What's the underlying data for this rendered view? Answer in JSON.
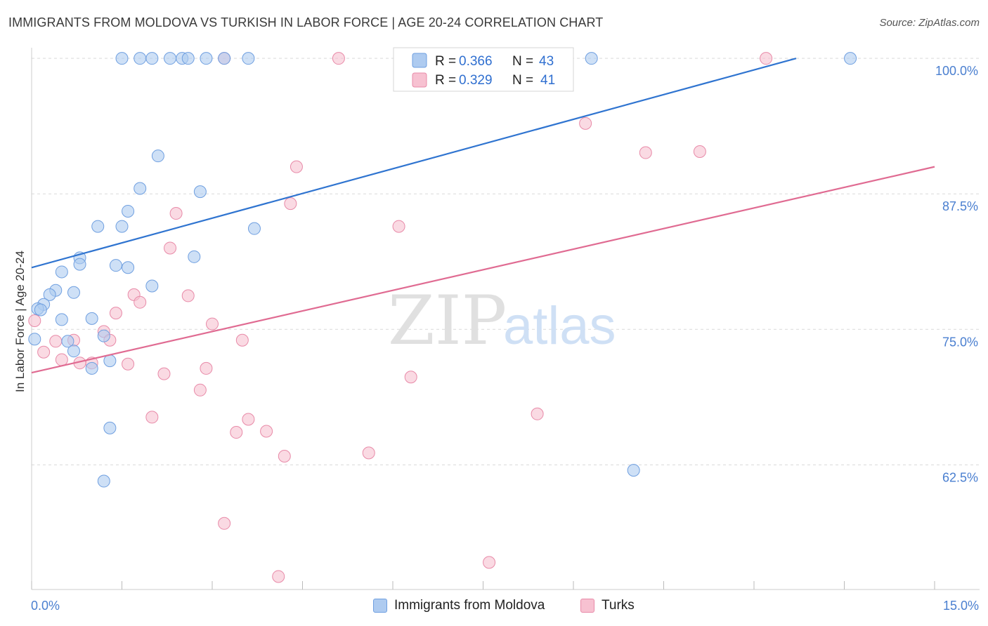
{
  "title": "IMMIGRANTS FROM MOLDOVA VS TURKISH IN LABOR FORCE | AGE 20-24 CORRELATION CHART",
  "source": "Source: ZipAtlas.com",
  "watermark": {
    "zip": "ZIP",
    "atlas": "atlas"
  },
  "colors": {
    "blue_fill": "#aecbf0",
    "blue_stroke": "#6f9fe0",
    "blue_line": "#2f74d0",
    "pink_fill": "#f7c1d1",
    "pink_stroke": "#e88aa8",
    "pink_line": "#e06b92",
    "grid": "#d9d9d9",
    "axis_label": "#4a7fd0"
  },
  "legend": {
    "rows": [
      {
        "r_label": "R =",
        "r_value": "0.366",
        "n_label": "N =",
        "n_value": "43"
      },
      {
        "r_label": "R =",
        "r_value": "0.329",
        "n_label": "N =",
        "n_value": "41"
      }
    ]
  },
  "bottom_legend": {
    "series1": "Immigrants from Moldova",
    "series2": "Turks"
  },
  "chart_data": {
    "type": "scatter",
    "ylabel": "In Labor Force | Age 20-24",
    "x_tick_labels": [
      "0.0%",
      "15.0%"
    ],
    "y_tick_labels": [
      "100.0%",
      "87.5%",
      "75.0%",
      "62.5%"
    ],
    "y_ticks": [
      100,
      87.5,
      75,
      62.5
    ],
    "xlim": [
      0,
      15
    ],
    "ylim": [
      51,
      101.5
    ],
    "grid": true,
    "series": [
      {
        "name": "Immigrants from Moldova",
        "points": [
          [
            1.5,
            100
          ],
          [
            1.8,
            100
          ],
          [
            2.0,
            100
          ],
          [
            2.3,
            100
          ],
          [
            2.5,
            100
          ],
          [
            2.6,
            100
          ],
          [
            2.9,
            100
          ],
          [
            3.2,
            100
          ],
          [
            3.6,
            100
          ],
          [
            8.0,
            100
          ],
          [
            9.3,
            100
          ],
          [
            13.6,
            100
          ],
          [
            2.1,
            91.0
          ],
          [
            1.8,
            88.0
          ],
          [
            2.8,
            87.7
          ],
          [
            1.6,
            85.9
          ],
          [
            1.1,
            84.5
          ],
          [
            1.5,
            84.5
          ],
          [
            3.7,
            84.3
          ],
          [
            0.8,
            81.6
          ],
          [
            0.8,
            81.0
          ],
          [
            1.4,
            80.9
          ],
          [
            1.6,
            80.7
          ],
          [
            2.7,
            81.7
          ],
          [
            0.5,
            80.3
          ],
          [
            2.0,
            79.0
          ],
          [
            0.4,
            78.6
          ],
          [
            0.3,
            78.2
          ],
          [
            0.7,
            78.4
          ],
          [
            0.2,
            77.3
          ],
          [
            0.1,
            76.9
          ],
          [
            0.5,
            75.9
          ],
          [
            1.0,
            76.0
          ],
          [
            0.05,
            74.1
          ],
          [
            0.6,
            73.9
          ],
          [
            1.2,
            74.4
          ],
          [
            0.7,
            73.0
          ],
          [
            1.3,
            72.1
          ],
          [
            1.0,
            71.4
          ],
          [
            1.3,
            65.9
          ],
          [
            1.2,
            61.0
          ],
          [
            10.0,
            62.0
          ],
          [
            0.15,
            76.8
          ]
        ]
      },
      {
        "name": "Turks",
        "points": [
          [
            3.2,
            100
          ],
          [
            5.1,
            100
          ],
          [
            12.2,
            100
          ],
          [
            9.2,
            94.0
          ],
          [
            10.2,
            91.3
          ],
          [
            11.1,
            91.4
          ],
          [
            4.4,
            90.0
          ],
          [
            2.4,
            85.7
          ],
          [
            4.3,
            86.6
          ],
          [
            6.1,
            84.5
          ],
          [
            2.3,
            82.5
          ],
          [
            1.7,
            78.2
          ],
          [
            1.8,
            77.5
          ],
          [
            2.6,
            78.1
          ],
          [
            1.4,
            76.5
          ],
          [
            3.0,
            75.5
          ],
          [
            1.2,
            74.8
          ],
          [
            0.4,
            73.9
          ],
          [
            0.7,
            74.0
          ],
          [
            1.3,
            74.0
          ],
          [
            3.5,
            74.0
          ],
          [
            0.05,
            75.8
          ],
          [
            0.2,
            72.9
          ],
          [
            0.5,
            72.2
          ],
          [
            0.8,
            71.9
          ],
          [
            1.0,
            71.9
          ],
          [
            1.6,
            71.8
          ],
          [
            2.2,
            70.9
          ],
          [
            2.9,
            71.4
          ],
          [
            2.8,
            69.4
          ],
          [
            6.3,
            70.6
          ],
          [
            2.0,
            66.9
          ],
          [
            3.6,
            66.7
          ],
          [
            3.4,
            65.5
          ],
          [
            3.9,
            65.6
          ],
          [
            8.4,
            67.2
          ],
          [
            4.2,
            63.3
          ],
          [
            5.6,
            63.6
          ],
          [
            3.2,
            57.1
          ],
          [
            7.6,
            53.5
          ],
          [
            4.1,
            52.2
          ]
        ]
      }
    ],
    "trendlines": [
      {
        "name": "Immigrants from Moldova",
        "x": [
          0,
          12.7
        ],
        "y": [
          80.7,
          100
        ]
      },
      {
        "name": "Turks",
        "x": [
          0,
          15
        ],
        "y": [
          71.0,
          90.0
        ]
      }
    ]
  }
}
